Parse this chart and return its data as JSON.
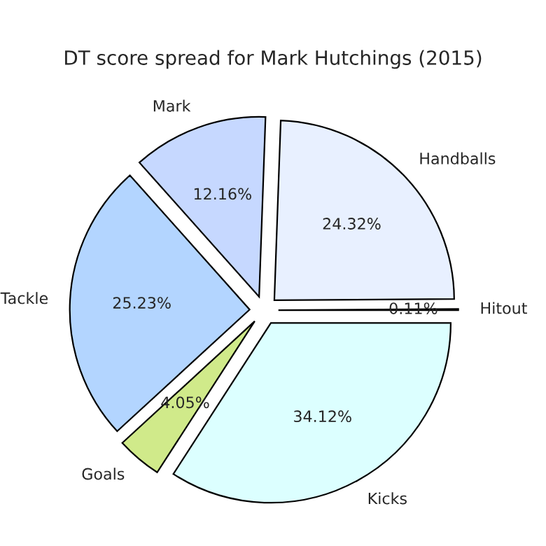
{
  "chart_data": {
    "type": "pie",
    "title": "DT score spread for Mark Hutchings (2015)",
    "categories": [
      "Hitout",
      "Handballs",
      "Mark",
      "Tackle",
      "Goals",
      "Kicks"
    ],
    "values": [
      0.11,
      24.32,
      12.16,
      25.23,
      4.05,
      34.12
    ],
    "colors": [
      "#ffffff",
      "#e8f0ff",
      "#c6d8ff",
      "#b3d5ff",
      "#d0ea8a",
      "#dcffff"
    ],
    "value_labels": [
      "0.11%",
      "24.32%",
      "12.16%",
      "25.23%",
      "4.05%",
      "34.12%"
    ]
  }
}
